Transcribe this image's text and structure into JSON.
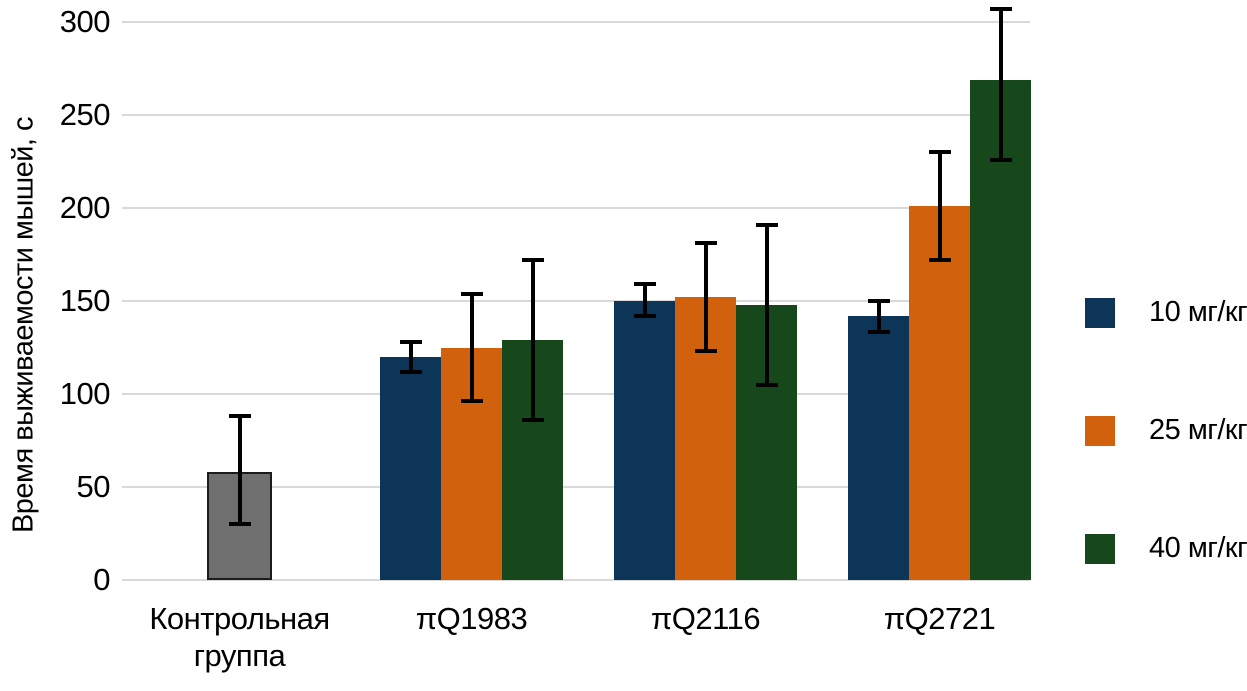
{
  "chart_data": {
    "type": "bar",
    "title": "",
    "xlabel": "",
    "ylabel": "Время выживаемости мышей, с",
    "ylim": [
      0,
      312
    ],
    "yticks": [
      0,
      50,
      100,
      150,
      200,
      250,
      300
    ],
    "grid": true,
    "legend_position": "right",
    "categories": [
      "Контрольная группа",
      "πQ1983",
      "πQ2116",
      "πQ2721"
    ],
    "series": [
      {
        "name": "Контрольная группа",
        "color": "#6f6f6f",
        "border_color": "#1c1c1c",
        "in_legend": false,
        "values": [
          58,
          null,
          null,
          null
        ],
        "err_low": [
          29,
          null,
          null,
          null
        ],
        "err_high": [
          89,
          null,
          null,
          null
        ]
      },
      {
        "name": "10 мг/кг",
        "color": "#0d3557",
        "in_legend": true,
        "values": [
          null,
          120,
          150,
          142
        ],
        "err_low": [
          null,
          111,
          141,
          132
        ],
        "err_high": [
          null,
          129,
          160,
          151
        ]
      },
      {
        "name": "25 мг/кг",
        "color": "#d2610e",
        "in_legend": true,
        "values": [
          null,
          125,
          152,
          201
        ],
        "err_low": [
          null,
          95,
          122,
          171
        ],
        "err_high": [
          null,
          155,
          182,
          231
        ]
      },
      {
        "name": "40 мг/кг",
        "color": "#17481b",
        "in_legend": true,
        "values": [
          null,
          129,
          148,
          269
        ],
        "err_low": [
          null,
          85,
          104,
          225
        ],
        "err_high": [
          null,
          173,
          192,
          308
        ]
      }
    ],
    "legend": [
      {
        "label": "10 мг/кг",
        "color": "#0d3557"
      },
      {
        "label": "25 мг/кг",
        "color": "#d2610e"
      },
      {
        "label": "40 мг/кг",
        "color": "#17481b"
      }
    ],
    "colors": {
      "grid": "#d9d9d9",
      "error_bar": "#000000",
      "text": "#000000",
      "background": "#ffffff"
    }
  }
}
